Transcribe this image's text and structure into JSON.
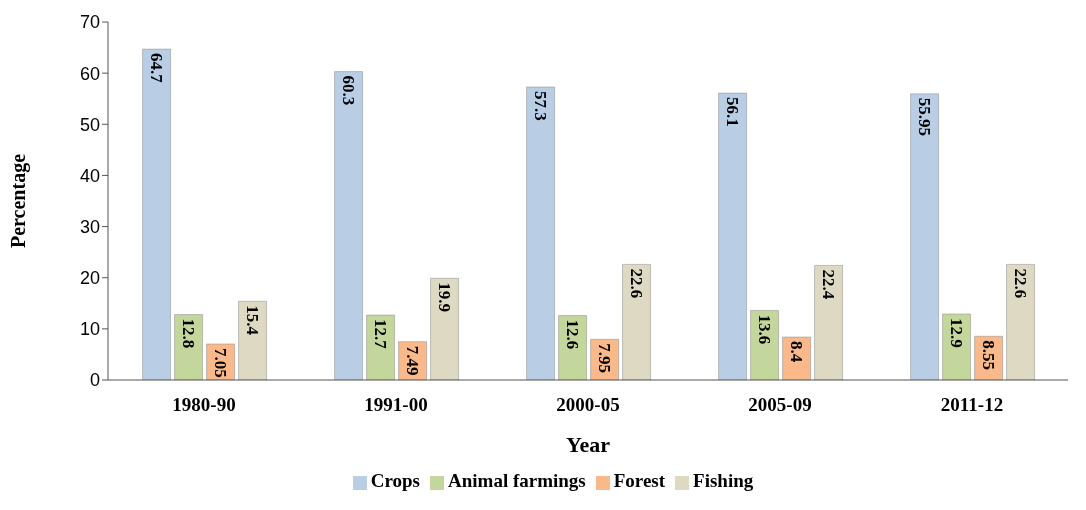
{
  "chart_data": {
    "type": "bar",
    "xlabel": "Year",
    "ylabel": "Percentage",
    "categories": [
      "1980-90",
      "1991-00",
      "2000-05",
      "2005-09",
      "2011-12"
    ],
    "series": [
      {
        "name": "Crops",
        "color": "#b9cde5",
        "values": [
          64.7,
          60.3,
          57.3,
          56.1,
          55.95
        ]
      },
      {
        "name": "Animal farmings",
        "color": "#c3d69b",
        "values": [
          12.8,
          12.7,
          12.6,
          13.6,
          12.9
        ]
      },
      {
        "name": "Forest",
        "color": "#f9b98a",
        "values": [
          7.05,
          7.49,
          7.95,
          8.4,
          8.55
        ]
      },
      {
        "name": "Fishing",
        "color": "#ddd9c3",
        "values": [
          15.4,
          19.9,
          22.6,
          22.4,
          22.6
        ]
      }
    ],
    "ylim": [
      0,
      70
    ],
    "yticks": [
      0,
      10,
      20,
      30,
      40,
      50,
      60,
      70
    ],
    "grid": false,
    "legend": "bottom",
    "data_labels": true
  }
}
